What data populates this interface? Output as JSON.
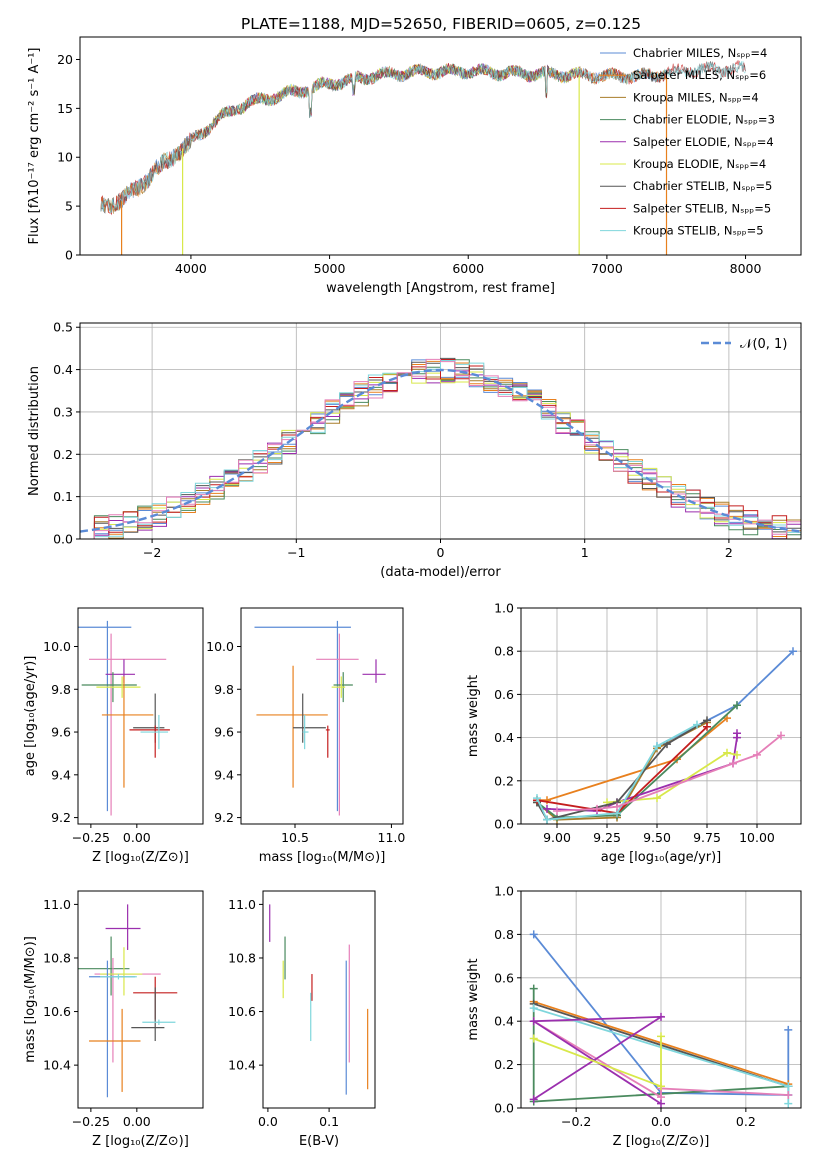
{
  "figure_title": "PLATE=1188, MJD=52650, FIBERID=0605, z=0.125",
  "colors": {
    "Chabrier MILES": "#5b8bd6",
    "Salpeter MILES": "#e8801e",
    "Kroupa MILES": "#a87d2a",
    "Chabrier ELODIE": "#4a8a5e",
    "Salpeter ELODIE": "#9b2fae",
    "Kroupa ELODIE": "#d8e84a",
    "Chabrier STELIB": "#555555",
    "Salpeter STELIB": "#c41e1e",
    "Kroupa STELIB": "#7fd6dc",
    "gaussian": "#5b8bd6",
    "pink": "#e57fb8"
  },
  "chart_data": [
    {
      "id": "spectrum",
      "type": "line",
      "xlabel": "wavelength [Angstrom, rest frame]",
      "ylabel": "Flux [fλ10⁻¹⁷ erg cm⁻² s⁻¹ A⁻¹]",
      "xlim": [
        3200,
        8400
      ],
      "ylim": [
        0,
        22.3
      ],
      "xticks": [
        4000,
        5000,
        6000,
        7000,
        8000
      ],
      "yticks": [
        0,
        5,
        10,
        15,
        20
      ],
      "continuum": {
        "x": [
          3350,
          3500,
          3700,
          3900,
          4000,
          4200,
          4400,
          4700,
          5000,
          5300,
          5600,
          6000,
          6300,
          6600,
          7000,
          7300,
          7600,
          7800
        ],
        "y": [
          5.2,
          5.5,
          8.0,
          10.5,
          11.5,
          14.0,
          15.5,
          16.5,
          17.5,
          18.3,
          18.7,
          18.8,
          18.6,
          18.5,
          18.3,
          18.3,
          19.0,
          19.0
        ]
      },
      "dropouts": [
        3500,
        3940,
        6800,
        7430
      ],
      "legend": [
        {
          "name": "Chabrier MILES, Nₛₚₚ=4",
          "color_key": "Chabrier MILES"
        },
        {
          "name": "Salpeter MILES, Nₛₚₚ=6",
          "color_key": "Salpeter MILES"
        },
        {
          "name": "Kroupa MILES, Nₛₚₚ=4",
          "color_key": "Kroupa MILES"
        },
        {
          "name": "Chabrier ELODIE, Nₛₚₚ=3",
          "color_key": "Chabrier ELODIE"
        },
        {
          "name": "Salpeter ELODIE, Nₛₚₚ=4",
          "color_key": "Salpeter ELODIE"
        },
        {
          "name": "Kroupa ELODIE, Nₛₚₚ=4",
          "color_key": "Kroupa ELODIE"
        },
        {
          "name": "Chabrier STELIB, Nₛₚₚ=5",
          "color_key": "Chabrier STELIB"
        },
        {
          "name": "Salpeter STELIB, Nₛₚₚ=5",
          "color_key": "Salpeter STELIB"
        },
        {
          "name": "Kroupa STELIB, Nₛₚₚ=5",
          "color_key": "Kroupa STELIB"
        }
      ]
    },
    {
      "id": "residuals",
      "type": "step",
      "xlabel": "(data-model)/error",
      "ylabel": "Normed distribution",
      "xlim": [
        -2.5,
        2.5
      ],
      "ylim": [
        0,
        0.51
      ],
      "xticks": [
        -2,
        -1,
        0,
        1,
        2
      ],
      "xtick_labels": [
        "−2",
        "−1",
        "0",
        "1",
        "2"
      ],
      "yticks": [
        0.0,
        0.1,
        0.2,
        0.3,
        0.4,
        0.5
      ],
      "legend_label": "𝒩(0, 1)",
      "bin_width": 0.1,
      "grid": true
    },
    {
      "id": "age_vs_Z",
      "type": "errorbar",
      "xlabel": "Z [log₁₀(Z/Z⊙)]",
      "ylabel": "age  [log₁₀(age/yr)]",
      "xlim": [
        -0.32,
        0.36
      ],
      "ylim": [
        9.17,
        10.18
      ],
      "xticks": [
        -0.25,
        0.0
      ],
      "xtick_labels": [
        "−0.25",
        "0.00"
      ],
      "yticks": [
        9.2,
        9.4,
        9.6,
        9.8,
        10.0
      ],
      "points": [
        {
          "c": "Chabrier MILES",
          "x": -0.16,
          "xerr": [
            0.31,
            0.13
          ],
          "y": 10.09,
          "yerr": [
            0.86,
            0.03
          ]
        },
        {
          "c": "pink",
          "x": -0.14,
          "xerr": [
            0.12,
            0.3
          ],
          "y": 9.94,
          "yerr": [
            0.73,
            0.12
          ]
        },
        {
          "c": "Salpeter ELODIE",
          "x": -0.07,
          "xerr": [
            0.1,
            0.06
          ],
          "y": 9.87,
          "yerr": [
            0.04,
            0.07
          ]
        },
        {
          "c": "Chabrier ELODIE",
          "x": -0.13,
          "xerr": [
            0.17,
            0.13
          ],
          "y": 9.82,
          "yerr": [
            0.08,
            0.06
          ]
        },
        {
          "c": "Kroupa ELODIE",
          "x": -0.08,
          "xerr": [
            0.14,
            0.1
          ],
          "y": 9.81,
          "yerr": [
            0.05,
            0.05
          ]
        },
        {
          "c": "Salpeter MILES",
          "x": -0.07,
          "xerr": [
            0.12,
            0.16
          ],
          "y": 9.68,
          "yerr": [
            0.34,
            0.18
          ]
        },
        {
          "c": "Chabrier STELIB",
          "x": 0.1,
          "xerr": [
            0.12,
            0.05
          ],
          "y": 9.62,
          "yerr": [
            0.07,
            0.16
          ]
        },
        {
          "c": "Salpeter STELIB",
          "x": 0.1,
          "xerr": [
            0.14,
            0.08
          ],
          "y": 9.61,
          "yerr": [
            0.13,
            0.02
          ]
        },
        {
          "c": "Kroupa STELIB",
          "x": 0.12,
          "xerr": [
            0.1,
            0.05
          ],
          "y": 9.6,
          "yerr": [
            0.08,
            0.08
          ]
        }
      ]
    },
    {
      "id": "age_vs_mass",
      "type": "errorbar",
      "xlabel": "mass [log₁₀(M/M⊙)]",
      "ylabel": "",
      "xlim": [
        10.22,
        11.06
      ],
      "ylim": [
        9.17,
        10.18
      ],
      "xticks": [
        10.5,
        11.0
      ],
      "xtick_labels": [
        "10.5",
        "11.0"
      ],
      "yticks": [
        9.2,
        9.4,
        9.6,
        9.8,
        10.0
      ],
      "points": [
        {
          "c": "Chabrier MILES",
          "x": 10.72,
          "xerr": [
            0.43,
            0.07
          ],
          "y": 10.09,
          "yerr": [
            0.86,
            0.03
          ]
        },
        {
          "c": "pink",
          "x": 10.73,
          "xerr": [
            0.12,
            0.1
          ],
          "y": 9.94,
          "yerr": [
            0.73,
            0.12
          ]
        },
        {
          "c": "Salpeter ELODIE",
          "x": 10.92,
          "xerr": [
            0.07,
            0.05
          ],
          "y": 9.87,
          "yerr": [
            0.04,
            0.07
          ]
        },
        {
          "c": "Chabrier ELODIE",
          "x": 10.75,
          "xerr": [
            0.05,
            0.05
          ],
          "y": 9.82,
          "yerr": [
            0.08,
            0.06
          ]
        },
        {
          "c": "Kroupa ELODIE",
          "x": 10.74,
          "xerr": [
            0.05,
            0.02
          ],
          "y": 9.81,
          "yerr": [
            0.05,
            0.05
          ]
        },
        {
          "c": "Salpeter MILES",
          "x": 10.49,
          "xerr": [
            0.19,
            0.18
          ],
          "y": 9.68,
          "yerr": [
            0.34,
            0.23
          ]
        },
        {
          "c": "Chabrier STELIB",
          "x": 10.54,
          "xerr": [
            0.05,
            0.12
          ],
          "y": 9.62,
          "yerr": [
            0.07,
            0.16
          ]
        },
        {
          "c": "Salpeter STELIB",
          "x": 10.67,
          "xerr": [
            0.01,
            0.01
          ],
          "y": 9.61,
          "yerr": [
            0.13,
            0.02
          ]
        },
        {
          "c": "Kroupa STELIB",
          "x": 10.55,
          "xerr": [
            0.01,
            0.02
          ],
          "y": 9.6,
          "yerr": [
            0.08,
            0.08
          ]
        }
      ]
    },
    {
      "id": "mass_weight_vs_age",
      "type": "line",
      "xlabel": "age  [log₁₀(age/yr)]",
      "ylabel": "mass weight",
      "xlim": [
        8.82,
        10.22
      ],
      "ylim": [
        0,
        1.0
      ],
      "xticks": [
        9.0,
        9.25,
        9.5,
        9.75,
        10.0
      ],
      "xtick_labels": [
        "9.00",
        "9.25",
        "9.50",
        "9.75",
        "10.00"
      ],
      "yticks": [
        0.0,
        0.2,
        0.4,
        0.6,
        0.8,
        1.0
      ],
      "grid": true,
      "series": [
        {
          "c": "Chabrier MILES",
          "x": [
            9.3,
            9.5,
            9.9,
            10.18
          ],
          "y": [
            0.04,
            0.36,
            0.55,
            0.8
          ]
        },
        {
          "c": "Salpeter MILES",
          "x": [
            8.9,
            8.95,
            9.6,
            9.85
          ],
          "y": [
            0.11,
            0.11,
            0.3,
            0.49
          ]
        },
        {
          "c": "Kroupa MILES",
          "x": [
            8.9,
            9.0,
            9.3,
            9.5,
            9.75
          ],
          "y": [
            0.1,
            0.02,
            0.03,
            0.35,
            0.47
          ]
        },
        {
          "c": "Chabrier ELODIE",
          "x": [
            8.9,
            9.0,
            9.3,
            9.9
          ],
          "y": [
            0.1,
            0.03,
            0.04,
            0.55
          ]
        },
        {
          "c": "Salpeter ELODIE",
          "x": [
            8.95,
            9.2,
            9.3,
            9.88,
            9.9,
            9.9
          ],
          "y": [
            0.07,
            0.06,
            0.1,
            0.28,
            0.4,
            0.42
          ]
        },
        {
          "c": "Kroupa ELODIE",
          "x": [
            9.25,
            9.5,
            9.85,
            9.9
          ],
          "y": [
            0.1,
            0.12,
            0.33,
            0.32
          ]
        },
        {
          "c": "Chabrier STELIB",
          "x": [
            8.9,
            8.95,
            9.3,
            9.55,
            9.75
          ],
          "y": [
            0.1,
            0.02,
            0.1,
            0.37,
            0.48
          ]
        },
        {
          "c": "Salpeter STELIB",
          "x": [
            8.9,
            9.3,
            9.75
          ],
          "y": [
            0.11,
            0.05,
            0.45
          ]
        },
        {
          "c": "Kroupa STELIB",
          "x": [
            8.9,
            8.95,
            9.3,
            9.5,
            9.7
          ],
          "y": [
            0.12,
            0.02,
            0.05,
            0.36,
            0.46
          ]
        },
        {
          "c": "pink",
          "x": [
            9.0,
            9.2,
            9.3,
            9.88,
            10.0,
            10.12
          ],
          "y": [
            0.06,
            0.07,
            0.08,
            0.28,
            0.32,
            0.41
          ]
        }
      ]
    },
    {
      "id": "mass_vs_Z",
      "type": "errorbar",
      "xlabel": "Z [log₁₀(Z/Z⊙)]",
      "ylabel": "mass [log₁₀(M/M⊙)]",
      "xlim": [
        -0.32,
        0.36
      ],
      "ylim": [
        10.24,
        11.05
      ],
      "xticks": [
        -0.25,
        0.0
      ],
      "xtick_labels": [
        "−0.25",
        "0.00"
      ],
      "yticks": [
        10.4,
        10.6,
        10.8,
        11.0
      ],
      "points": [
        {
          "c": "Salpeter ELODIE",
          "x": -0.05,
          "xerr": [
            0.12,
            0.07
          ],
          "y": 10.91,
          "yerr": [
            0.08,
            0.09
          ]
        },
        {
          "c": "Chabrier ELODIE",
          "x": -0.14,
          "xerr": [
            0.18,
            0.1
          ],
          "y": 10.76,
          "yerr": [
            0.1,
            0.12
          ]
        },
        {
          "c": "pink",
          "x": -0.13,
          "xerr": [
            0.1,
            0.26
          ],
          "y": 10.74,
          "yerr": [
            0.33,
            0.06
          ]
        },
        {
          "c": "Kroupa ELODIE",
          "x": -0.07,
          "xerr": [
            0.13,
            0.1
          ],
          "y": 10.74,
          "yerr": [
            0.08,
            0.1
          ]
        },
        {
          "c": "Chabrier MILES",
          "x": -0.16,
          "xerr": [
            0.1,
            0.15
          ],
          "y": 10.73,
          "yerr": [
            0.45,
            0.06
          ]
        },
        {
          "c": "Kroupa STELIB",
          "x": -0.1,
          "xerr": [
            0.1,
            0.1
          ],
          "y": 10.73,
          "yerr": [
            0.01,
            0.01
          ]
        },
        {
          "c": "Salpeter STELIB",
          "x": 0.1,
          "xerr": [
            0.12,
            0.12
          ],
          "y": 10.67,
          "yerr": [
            0.1,
            0.06
          ]
        },
        {
          "c": "Chabrier STELIB",
          "x": 0.1,
          "xerr": [
            0.13,
            0.05
          ],
          "y": 10.54,
          "yerr": [
            0.05,
            0.15
          ]
        },
        {
          "c": "Kroupa STELIB",
          "x": 0.12,
          "xerr": [
            0.09,
            0.09
          ],
          "y": 10.56,
          "yerr": [
            0.01,
            0.01
          ]
        },
        {
          "c": "Salpeter MILES",
          "x": -0.08,
          "xerr": [
            0.18,
            0.1
          ],
          "y": 10.49,
          "yerr": [
            0.19,
            0.12
          ]
        }
      ]
    },
    {
      "id": "mass_vs_EBV",
      "type": "errorbar",
      "xlabel": "E(B-V)",
      "ylabel": "",
      "xlim": [
        -0.008,
        0.175
      ],
      "ylim": [
        10.24,
        11.05
      ],
      "xticks": [
        0.0,
        0.1
      ],
      "xtick_labels": [
        "0.0",
        "0.1"
      ],
      "yticks": [
        10.4,
        10.6,
        10.8,
        11.0
      ],
      "points": [
        {
          "c": "Salpeter ELODIE",
          "x": 0.003,
          "y": 10.92,
          "yerr": [
            0.06,
            0.08
          ]
        },
        {
          "c": "Chabrier ELODIE",
          "x": 0.028,
          "y": 10.8,
          "yerr": [
            0.08,
            0.08
          ]
        },
        {
          "c": "Kroupa ELODIE",
          "x": 0.025,
          "y": 10.74,
          "yerr": [
            0.09,
            0.05
          ]
        },
        {
          "c": "Salpeter STELIB",
          "x": 0.072,
          "y": 10.67,
          "yerr": [
            0.03,
            0.07
          ]
        },
        {
          "c": "Kroupa STELIB",
          "x": 0.07,
          "y": 10.59,
          "yerr": [
            0.1,
            0.08
          ]
        },
        {
          "c": "pink",
          "x": 0.133,
          "y": 10.63,
          "yerr": [
            0.22,
            0.22
          ]
        },
        {
          "c": "Chabrier MILES",
          "x": 0.128,
          "y": 10.54,
          "yerr": [
            0.25,
            0.25
          ]
        },
        {
          "c": "Salpeter MILES",
          "x": 0.163,
          "y": 10.46,
          "yerr": [
            0.15,
            0.15
          ]
        }
      ]
    },
    {
      "id": "mass_weight_vs_Z",
      "type": "line",
      "xlabel": "Z [log₁₀(Z/Z⊙)]",
      "ylabel": "mass weight",
      "xlim": [
        -0.33,
        0.33
      ],
      "ylim": [
        0,
        1.0
      ],
      "xticks": [
        -0.2,
        0.0,
        0.2
      ],
      "xtick_labels": [
        "−0.2",
        "0.0",
        "0.2"
      ],
      "yticks": [
        0.0,
        0.2,
        0.4,
        0.6,
        0.8,
        1.0
      ],
      "grid": true,
      "series": [
        {
          "c": "Chabrier MILES",
          "x": [
            -0.3,
            0.0,
            0.3,
            0.3
          ],
          "y": [
            0.8,
            0.07,
            0.06,
            0.36
          ]
        },
        {
          "c": "Salpeter MILES",
          "x": [
            -0.3,
            0.3
          ],
          "y": [
            0.49,
            0.11
          ]
        },
        {
          "c": "Chabrier ELODIE",
          "x": [
            -0.3,
            -0.3,
            0.3
          ],
          "y": [
            0.55,
            0.03,
            0.1
          ]
        },
        {
          "c": "Chabrier STELIB",
          "x": [
            -0.3,
            0.3
          ],
          "y": [
            0.48,
            0.1
          ]
        },
        {
          "c": "Kroupa STELIB",
          "x": [
            -0.3,
            0.3,
            0.3
          ],
          "y": [
            0.46,
            0.1,
            0.02
          ]
        },
        {
          "c": "pink",
          "x": [
            -0.3,
            0.0,
            0.0,
            0.3
          ],
          "y": [
            0.4,
            0.05,
            0.09,
            0.06
          ]
        },
        {
          "c": "Salpeter ELODIE",
          "x": [
            -0.3,
            0.0,
            -0.3,
            0.0
          ],
          "y": [
            0.04,
            0.42,
            0.4,
            0.02
          ]
        },
        {
          "c": "Kroupa ELODIE",
          "x": [
            -0.3,
            0.0,
            0.0
          ],
          "y": [
            0.32,
            0.1,
            0.33
          ]
        }
      ]
    }
  ]
}
